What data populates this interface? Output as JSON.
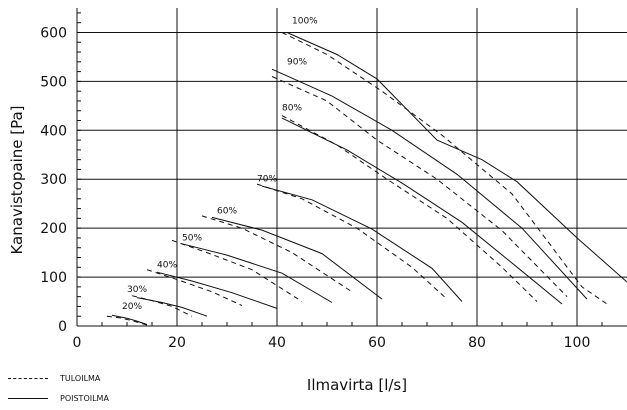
{
  "chart_data": {
    "type": "line",
    "title": "",
    "xlabel": "Ilmavirta [l/s]",
    "ylabel": "Kanavistopaine [Pa]",
    "xlim": [
      0,
      110
    ],
    "ylim": [
      0,
      650
    ],
    "xticks": [
      0,
      20,
      40,
      60,
      80,
      100
    ],
    "yticks": [
      0,
      100,
      200,
      300,
      400,
      500,
      600
    ],
    "grid": true,
    "legend_position": "bottom-left",
    "legend": [
      {
        "key": "tulo",
        "label": "TULOILMA",
        "style": "dashed"
      },
      {
        "key": "poisto",
        "label": "POISTOILMA",
        "style": "solid"
      }
    ],
    "series": [
      {
        "label": "20%",
        "label_at": [
          9,
          35
        ],
        "tulo": [
          [
            6,
            20
          ],
          [
            9,
            16
          ],
          [
            12,
            8
          ],
          [
            14,
            2
          ]
        ],
        "poisto": [
          [
            7,
            22
          ],
          [
            10,
            16
          ],
          [
            12,
            10
          ],
          [
            14,
            3
          ]
        ]
      },
      {
        "label": "30%",
        "label_at": [
          10,
          70
        ],
        "tulo": [
          [
            11,
            62
          ],
          [
            15,
            52
          ],
          [
            19,
            40
          ],
          [
            23,
            20
          ]
        ],
        "poisto": [
          [
            12,
            58
          ],
          [
            17,
            48
          ],
          [
            21,
            38
          ],
          [
            26,
            20
          ]
        ]
      },
      {
        "label": "40%",
        "label_at": [
          16,
          120
        ],
        "tulo": [
          [
            14,
            115
          ],
          [
            20,
            95
          ],
          [
            27,
            70
          ],
          [
            33,
            42
          ]
        ],
        "poisto": [
          [
            16,
            110
          ],
          [
            23,
            92
          ],
          [
            31,
            68
          ],
          [
            40,
            36
          ]
        ]
      },
      {
        "label": "50%",
        "label_at": [
          21,
          175
        ],
        "tulo": [
          [
            19,
            175
          ],
          [
            26,
            150
          ],
          [
            35,
            115
          ],
          [
            45,
            50
          ]
        ],
        "poisto": [
          [
            21,
            168
          ],
          [
            30,
            145
          ],
          [
            41,
            108
          ],
          [
            51,
            48
          ]
        ]
      },
      {
        "label": "60%",
        "label_at": [
          28,
          230
        ],
        "tulo": [
          [
            25,
            225
          ],
          [
            33,
            200
          ],
          [
            43,
            150
          ],
          [
            55,
            70
          ]
        ],
        "poisto": [
          [
            27,
            222
          ],
          [
            37,
            196
          ],
          [
            49,
            148
          ],
          [
            61,
            55
          ]
        ]
      },
      {
        "label": "70%",
        "label_at": [
          36,
          295
        ],
        "tulo": [
          [
            36,
            290
          ],
          [
            45,
            260
          ],
          [
            56,
            200
          ],
          [
            67,
            120
          ],
          [
            74,
            55
          ]
        ],
        "poisto": [
          [
            37,
            286
          ],
          [
            47,
            258
          ],
          [
            59,
            198
          ],
          [
            71,
            118
          ],
          [
            77,
            50
          ]
        ]
      },
      {
        "label": "80%",
        "label_at": [
          41,
          440
        ],
        "tulo": [
          [
            41,
            430
          ],
          [
            52,
            370
          ],
          [
            62,
            300
          ],
          [
            74,
            220
          ],
          [
            85,
            120
          ],
          [
            92,
            50
          ]
        ],
        "poisto": [
          [
            41,
            425
          ],
          [
            54,
            360
          ],
          [
            65,
            292
          ],
          [
            77,
            212
          ],
          [
            89,
            112
          ],
          [
            97,
            45
          ]
        ]
      },
      {
        "label": "90%",
        "label_at": [
          42,
          535
        ],
        "tulo": [
          [
            39,
            510
          ],
          [
            50,
            460
          ],
          [
            60,
            380
          ],
          [
            72,
            300
          ],
          [
            85,
            195
          ],
          [
            98,
            60
          ]
        ],
        "poisto": [
          [
            39,
            525
          ],
          [
            51,
            470
          ],
          [
            63,
            400
          ],
          [
            76,
            310
          ],
          [
            89,
            200
          ],
          [
            102,
            55
          ]
        ]
      },
      {
        "label": "100%",
        "label_at": [
          43,
          618
        ],
        "tulo": [
          [
            41,
            600
          ],
          [
            50,
            555
          ],
          [
            61,
            480
          ],
          [
            73,
            390
          ],
          [
            87,
            270
          ],
          [
            101,
            80
          ],
          [
            106,
            45
          ]
        ],
        "poisto": [
          [
            42,
            600
          ],
          [
            52,
            555
          ],
          [
            60,
            505
          ],
          [
            72,
            380
          ],
          [
            81,
            340
          ],
          [
            88,
            295
          ],
          [
            100,
            180
          ],
          [
            110,
            90
          ]
        ]
      }
    ]
  }
}
